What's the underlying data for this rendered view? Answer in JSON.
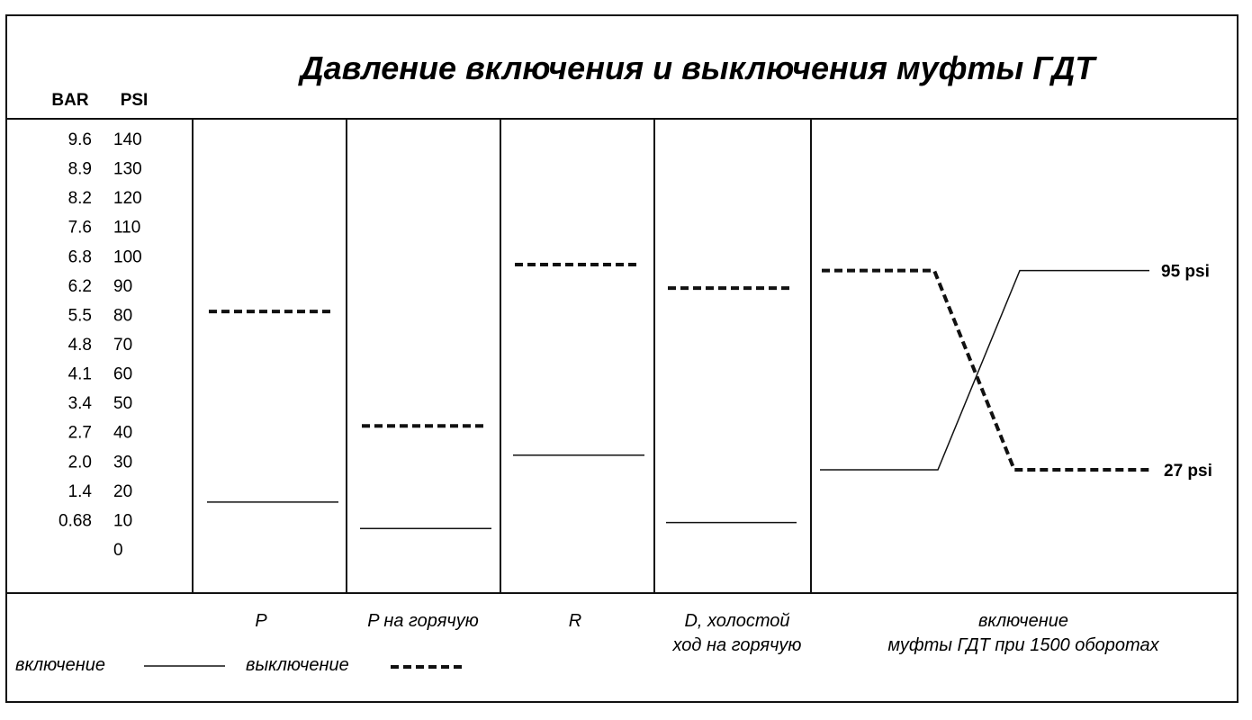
{
  "chart_data": {
    "type": "line",
    "title": "Давление включения и выключения муфты ГДТ",
    "axis_headers": {
      "bar": "BAR",
      "psi": "PSI"
    },
    "y_ticks_psi": [
      "140",
      "130",
      "120",
      "110",
      "100",
      "90",
      "80",
      "70",
      "60",
      "50",
      "40",
      "30",
      "20",
      "10",
      "0"
    ],
    "y_ticks_bar": [
      "9.6",
      "8.9",
      "8.2",
      "7.6",
      "6.8",
      "6.2",
      "5.5",
      "4.8",
      "4.1",
      "3.4",
      "2.7",
      "2.0",
      "1.4",
      "0.68",
      ""
    ],
    "ylim_psi": [
      0,
      140
    ],
    "categories": [
      {
        "lines": [
          "P"
        ],
        "engagement_psi": 16,
        "disengagement_psi": 81
      },
      {
        "lines": [
          "P на горячую"
        ],
        "engagement_psi": 7,
        "disengagement_psi": 42
      },
      {
        "lines": [
          "R"
        ],
        "engagement_psi": 32,
        "disengagement_psi": 97
      },
      {
        "lines": [
          "D, холостой",
          "ход на горячую"
        ],
        "engagement_psi": 9,
        "disengagement_psi": 89
      }
    ],
    "transition": {
      "lines": [
        "включение",
        "муфты ГДТ при 1500 оборотах"
      ],
      "engagement_psi": [
        27,
        95
      ],
      "disengagement_psi": [
        95,
        27
      ],
      "end_labels": [
        "95 psi",
        "27 psi"
      ]
    },
    "legend": {
      "engagement": "включение",
      "disengagement": "выключение"
    },
    "colors": {
      "line": "#111111",
      "background": "#ffffff"
    }
  }
}
